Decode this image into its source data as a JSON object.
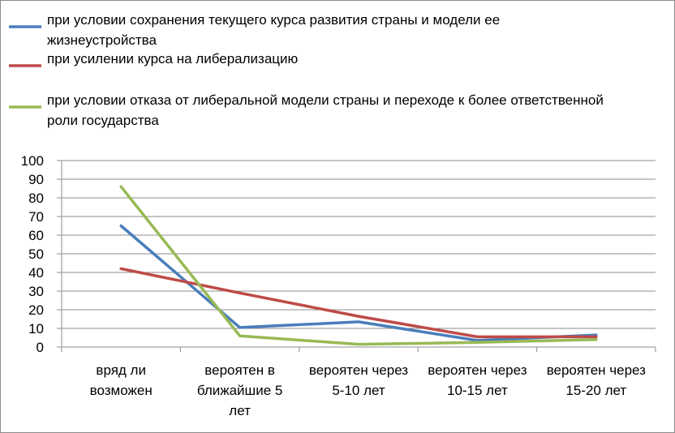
{
  "chart_data": {
    "type": "line",
    "title": "",
    "xlabel": "",
    "ylabel": "",
    "ylim": [
      0,
      100
    ],
    "yticks": [
      0,
      10,
      20,
      30,
      40,
      50,
      60,
      70,
      80,
      90,
      100
    ],
    "grid": true,
    "legend_placement": "top",
    "categories": [
      [
        "вряд ли",
        "возможен"
      ],
      [
        "вероятен в",
        "ближайшие 5",
        "лет"
      ],
      [
        "вероятен через",
        "5-10 лет"
      ],
      [
        "вероятен через",
        "10-15 лет"
      ],
      [
        "вероятен через",
        "15-20 лет"
      ]
    ],
    "series": [
      {
        "name": [
          "при условии сохранения текущего курса развития страны и модели ее",
          "жизнеустройства"
        ],
        "color": "#4a7ebb",
        "values": [
          65,
          10.5,
          13.5,
          3.5,
          6.5
        ]
      },
      {
        "name": [
          "при усилении курса на либерализацию"
        ],
        "color": "#be4b48",
        "values": [
          42,
          29,
          16.5,
          5.5,
          5.5
        ]
      },
      {
        "name": [
          "при условии отказа от либеральной модели страны и переходе к более ответственной",
          "роли государства"
        ],
        "color": "#98b954",
        "values": [
          86,
          6,
          1.5,
          2.5,
          4
        ]
      }
    ]
  }
}
